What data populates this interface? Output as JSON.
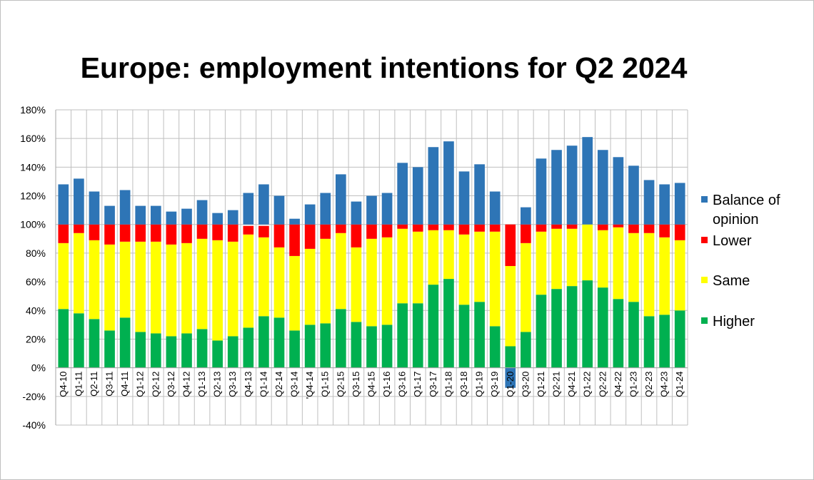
{
  "chart_data": {
    "type": "bar",
    "stacked": true,
    "title": "Europe: employment intentions for Q2 2024",
    "xlabel": "",
    "ylabel": "",
    "ylim": [
      -40,
      180
    ],
    "yticks": [
      "-40%",
      "-20%",
      "0%",
      "20%",
      "40%",
      "60%",
      "80%",
      "100%",
      "120%",
      "140%",
      "160%",
      "180%"
    ],
    "grid": true,
    "legend_position": "right",
    "categories": [
      "Q4-10",
      "Q1-11",
      "Q2-11",
      "Q3-11",
      "Q4-11",
      "Q1-12",
      "Q2-12",
      "Q3-12",
      "Q4-12",
      "Q1-13",
      "Q2-13",
      "Q3-13",
      "Q4-13",
      "Q1-14",
      "Q2-14",
      "Q3-14",
      "'Q4-14",
      "Q1-15",
      "Q2-15",
      "Q3-15",
      "Q4-15",
      "Q1-16",
      "Q3-16",
      "Q1-17",
      "Q3-17",
      "Q1-18",
      "Q3-18",
      "Q1-19",
      "Q3-19",
      "Q1-20",
      "Q3-20",
      "Q1-21",
      "Q2-21",
      "Q4-21",
      "Q1-22",
      "Q2-22",
      "Q4-22",
      "Q1-23",
      "Q2-23",
      "Q4-23",
      "Q1-24"
    ],
    "series": [
      {
        "name": "Higher",
        "color": "#00b050",
        "values": [
          41,
          38,
          34,
          26,
          35,
          25,
          24,
          22,
          24,
          27,
          19,
          22,
          28,
          36,
          35,
          26,
          30,
          31,
          41,
          32,
          29,
          30,
          45,
          45,
          58,
          62,
          44,
          46,
          29,
          15,
          25,
          51,
          55,
          57,
          61,
          56,
          48,
          46,
          36,
          37,
          40
        ]
      },
      {
        "name": "Same",
        "color": "#ffff00",
        "values": [
          46,
          56,
          55,
          60,
          53,
          63,
          64,
          64,
          63,
          63,
          70,
          66,
          65,
          55,
          49,
          52,
          53,
          59,
          53,
          52,
          61,
          61,
          52,
          50,
          38,
          34,
          49,
          49,
          66,
          56,
          62,
          44,
          42,
          40,
          39,
          40,
          50,
          48,
          58,
          54,
          49
        ]
      },
      {
        "name": "Lower",
        "color": "#ff0000",
        "values": [
          13,
          6,
          11,
          14,
          12,
          12,
          12,
          14,
          13,
          10,
          11,
          12,
          6,
          8,
          16,
          22,
          17,
          10,
          6,
          16,
          10,
          9,
          3,
          5,
          4,
          4,
          7,
          5,
          5,
          29,
          13,
          5,
          3,
          3,
          0,
          4,
          2,
          6,
          6,
          9,
          11
        ]
      },
      {
        "name": "Balance of opinion",
        "color": "#2e75b6",
        "values": [
          28,
          32,
          23,
          13,
          24,
          13,
          13,
          9,
          11,
          17,
          8,
          10,
          22,
          28,
          20,
          4,
          14,
          22,
          35,
          16,
          20,
          22,
          43,
          40,
          54,
          58,
          37,
          42,
          23,
          -14,
          12,
          46,
          52,
          55,
          61,
          52,
          47,
          41,
          31,
          28,
          29
        ]
      }
    ]
  }
}
